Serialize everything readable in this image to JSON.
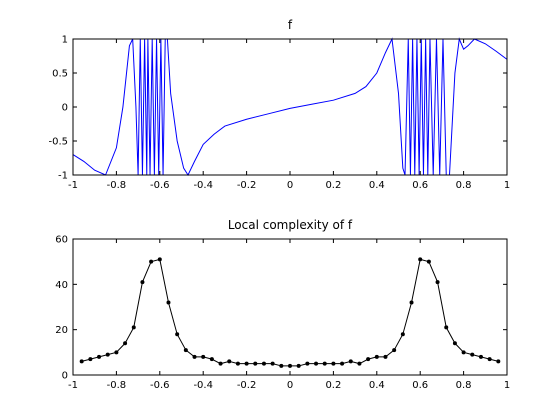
{
  "chart_data": [
    {
      "type": "line",
      "title": "f",
      "color": "#0000ff",
      "marker": false,
      "x": [
        -1,
        -0.95,
        -0.9,
        -0.85,
        -0.8,
        -0.77,
        -0.74,
        -0.725,
        -0.71,
        -0.7,
        -0.69,
        -0.68,
        -0.67,
        -0.66,
        -0.655,
        -0.645,
        -0.635,
        -0.625,
        -0.615,
        -0.605,
        -0.595,
        -0.585,
        -0.575,
        -0.565,
        -0.55,
        -0.52,
        -0.49,
        -0.47,
        -0.44,
        -0.4,
        -0.35,
        -0.3,
        -0.2,
        -0.1,
        0,
        0.1,
        0.2,
        0.3,
        0.35,
        0.4,
        0.44,
        0.47,
        0.5,
        0.52,
        0.53,
        0.545,
        0.555,
        0.565,
        0.575,
        0.585,
        0.595,
        0.605,
        0.615,
        0.625,
        0.635,
        0.645,
        0.66,
        0.675,
        0.69,
        0.705,
        0.72,
        0.735,
        0.76,
        0.78,
        0.8,
        0.82,
        0.85,
        0.9,
        0.95,
        1
      ],
      "values": [
        -0.7,
        -0.8,
        -0.93,
        -1,
        -0.6,
        0,
        0.9,
        1,
        0,
        -1,
        1,
        -1,
        1,
        -1,
        1,
        -1,
        1,
        -1,
        1,
        -1,
        1,
        -1,
        1,
        1,
        0.2,
        -0.5,
        -0.9,
        -1,
        -0.8,
        -0.55,
        -0.4,
        -0.28,
        -0.18,
        -0.1,
        -0.02,
        0.04,
        0.1,
        0.2,
        0.3,
        0.5,
        0.8,
        1,
        0.2,
        -0.9,
        -1,
        1,
        -1,
        1,
        -1,
        1,
        -1,
        1,
        -1,
        1,
        -1,
        1,
        -1,
        1,
        -1,
        1,
        -1,
        -1,
        0.5,
        1,
        0.85,
        0.9,
        1,
        0.93,
        0.82,
        0.7
      ],
      "xlim": [
        -1,
        1
      ],
      "xticks": [
        -1,
        -0.8,
        -0.6,
        -0.4,
        -0.2,
        0,
        0.2,
        0.4,
        0.6,
        0.8,
        1
      ],
      "ylim": [
        -1,
        1
      ],
      "yticks": [
        -1,
        -0.5,
        0,
        0.5,
        1
      ]
    },
    {
      "type": "line",
      "title": "Local complexity of f",
      "color": "#000000",
      "marker": true,
      "x": [
        -0.96,
        -0.92,
        -0.88,
        -0.84,
        -0.8,
        -0.76,
        -0.72,
        -0.68,
        -0.64,
        -0.6,
        -0.56,
        -0.52,
        -0.48,
        -0.44,
        -0.4,
        -0.36,
        -0.32,
        -0.28,
        -0.24,
        -0.2,
        -0.16,
        -0.12,
        -0.08,
        -0.04,
        0,
        0.04,
        0.08,
        0.12,
        0.16,
        0.2,
        0.24,
        0.28,
        0.32,
        0.36,
        0.4,
        0.44,
        0.48,
        0.52,
        0.56,
        0.6,
        0.64,
        0.68,
        0.72,
        0.76,
        0.8,
        0.84,
        0.88,
        0.92,
        0.96
      ],
      "values": [
        6,
        7,
        8,
        9,
        10,
        14,
        21,
        41,
        50,
        51,
        32,
        18,
        11,
        8,
        8,
        7,
        5,
        6,
        5,
        5,
        5,
        5,
        5,
        4,
        4,
        4,
        5,
        5,
        5,
        5,
        5,
        6,
        5,
        7,
        8,
        8,
        11,
        18,
        32,
        51,
        50,
        41,
        21,
        14,
        10,
        9,
        8,
        7,
        6
      ],
      "xlim": [
        -1,
        1
      ],
      "xticks": [
        -1,
        -0.8,
        -0.6,
        -0.4,
        -0.2,
        0,
        0.2,
        0.4,
        0.6,
        0.8,
        1
      ],
      "ylim": [
        0,
        60
      ],
      "yticks": [
        0,
        20,
        40,
        60
      ]
    }
  ]
}
